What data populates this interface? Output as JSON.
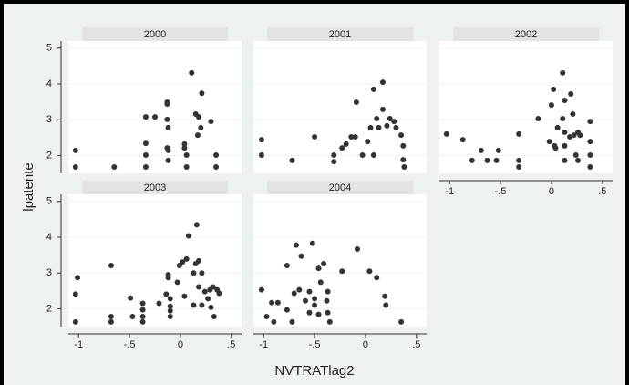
{
  "chart_data": {
    "type": "scatter",
    "x_label": "NVTRATlag2",
    "y_label": "lpatente",
    "xlim": [
      -1.1,
      0.6
    ],
    "ylim": [
      1.5,
      5.2
    ],
    "xticks": [
      -1,
      {
        "value": -0.5,
        "label": "-.5"
      },
      0,
      {
        "value": 0.5,
        "label": ".5"
      }
    ],
    "yticks": [
      2,
      3,
      4,
      5
    ],
    "grid": true,
    "color": "#333333",
    "panels": [
      {
        "title": "2000",
        "x": [
          -1.03,
          -1.03,
          -0.65,
          -0.34,
          -0.34,
          -0.34,
          -0.34,
          -0.25,
          -0.13,
          -0.13,
          -0.12,
          -0.13,
          -0.13,
          -0.12,
          -0.12,
          0.04,
          0.04,
          0.06,
          0.06,
          0.11,
          0.15,
          0.18,
          0.17,
          0.2,
          0.21,
          0.3,
          0.35,
          0.35
        ],
        "y": [
          2.14,
          1.68,
          1.68,
          3.08,
          2.34,
          2.01,
          1.68,
          3.08,
          3.01,
          2.21,
          2.14,
          3.49,
          3.44,
          2.78,
          1.86,
          2.32,
          2.21,
          2.01,
          1.68,
          4.31,
          3.16,
          3.08,
          2.57,
          2.78,
          3.74,
          2.95,
          2.01,
          1.68
        ]
      },
      {
        "title": "2001",
        "x": [
          -1.02,
          -1.02,
          -0.72,
          -0.5,
          -0.31,
          -0.31,
          -0.23,
          -0.19,
          -0.14,
          -0.1,
          -0.09,
          -0.03,
          0.02,
          0.05,
          0.08,
          0.08,
          0.11,
          0.13,
          0.17,
          0.17,
          0.21,
          0.24,
          0.28,
          0.3,
          0.35,
          0.37,
          0.37,
          0.38
        ],
        "y": [
          2.44,
          2.01,
          1.86,
          2.52,
          2.01,
          1.83,
          2.21,
          2.32,
          2.52,
          2.52,
          3.49,
          2.01,
          2.39,
          2.78,
          2.01,
          3.85,
          3.03,
          2.78,
          3.29,
          4.05,
          2.83,
          3.03,
          2.95,
          2.78,
          2.57,
          2.27,
          1.88,
          1.68
        ]
      },
      {
        "title": "2002",
        "x": [
          -1.03,
          -0.87,
          -0.78,
          -0.69,
          -0.63,
          -0.54,
          -0.52,
          -0.32,
          -0.32,
          -0.32,
          -0.13,
          -0.02,
          0,
          0.02,
          0.03,
          0.04,
          0.06,
          0.11,
          0.11,
          0.13,
          0.13,
          0.13,
          0.13,
          0.18,
          0.19,
          0.21,
          0.22,
          0.24,
          0.26,
          0.26,
          0.28,
          0.38,
          0.38,
          0.38,
          0.38
        ],
        "y": [
          2.6,
          2.44,
          1.86,
          2.14,
          1.86,
          1.86,
          2.14,
          2.6,
          1.86,
          1.68,
          3.03,
          2.39,
          3.41,
          3.85,
          2.27,
          2.21,
          2.78,
          3.03,
          4.31,
          3.54,
          2.65,
          2.27,
          1.86,
          2.52,
          3.72,
          3.16,
          2.57,
          2.01,
          1.86,
          2.65,
          2.57,
          2.95,
          2.39,
          2.01,
          1.68
        ]
      },
      {
        "title": "2003",
        "x": [
          -1.03,
          -1.01,
          -1.03,
          -0.68,
          -0.68,
          -0.68,
          -0.49,
          -0.47,
          -0.37,
          -0.37,
          -0.37,
          -0.37,
          -0.21,
          -0.14,
          -0.12,
          -0.12,
          -0.1,
          -0.1,
          -0.1,
          -0.1,
          -0.03,
          -0.01,
          0.02,
          0.04,
          0.06,
          0.08,
          0.13,
          0.13,
          0.15,
          0.16,
          0.18,
          0.18,
          0.21,
          0.21,
          0.24,
          0.27,
          0.29,
          0.3,
          0.32,
          0.33,
          0.36,
          0.38
        ],
        "y": [
          2.41,
          2.87,
          1.63,
          3.21,
          1.78,
          1.63,
          2.3,
          1.78,
          2.15,
          1.97,
          1.78,
          1.63,
          2.15,
          2.41,
          2.95,
          2.87,
          2.28,
          2.07,
          1.94,
          1.78,
          2.74,
          3.21,
          3.31,
          2.35,
          3.39,
          4.04,
          3.0,
          2.1,
          3.26,
          4.35,
          3.34,
          2.61,
          3.0,
          2.1,
          2.48,
          2.28,
          2.53,
          2.04,
          2.61,
          1.78,
          2.53,
          2.43
        ]
      },
      {
        "title": "2004",
        "x": [
          -1.02,
          -0.97,
          -0.92,
          -0.9,
          -0.86,
          -0.77,
          -0.77,
          -0.72,
          -0.7,
          -0.68,
          -0.65,
          -0.63,
          -0.59,
          -0.55,
          -0.55,
          -0.52,
          -0.5,
          -0.5,
          -0.46,
          -0.46,
          -0.44,
          -0.41,
          -0.38,
          -0.37,
          -0.37,
          -0.35,
          -0.23,
          -0.08,
          0.04,
          0.11,
          0.19,
          0.2,
          0.35
        ],
        "y": [
          2.53,
          1.78,
          2.17,
          1.63,
          2.17,
          1.97,
          3.21,
          1.63,
          2.43,
          3.78,
          2.53,
          3.47,
          2.22,
          2.48,
          1.89,
          3.83,
          2.28,
          2.1,
          3.13,
          1.84,
          2.74,
          3.26,
          2.22,
          2.48,
          1.89,
          1.63,
          3.05,
          3.67,
          3.05,
          2.87,
          2.35,
          2.1,
          1.63
        ]
      }
    ]
  }
}
